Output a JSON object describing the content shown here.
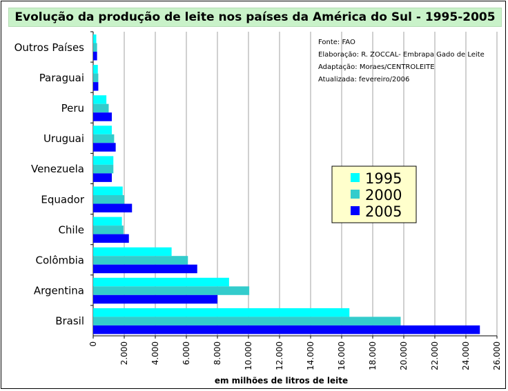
{
  "chart_data": {
    "type": "bar",
    "orientation": "horizontal",
    "title": "Evolução da produção de leite nos países da América do Sul - 1995-2005",
    "xlabel": "em milhões de litros de leite",
    "ylabel": "",
    "xlim": [
      0,
      26000
    ],
    "xticks": [
      "0",
      "2.000",
      "4.000",
      "6.000",
      "8.000",
      "10.000",
      "12.000",
      "14.000",
      "16.000",
      "18.000",
      "20.000",
      "22.000",
      "24.000",
      "26.000"
    ],
    "grid": true,
    "legend_position": "right",
    "categories": [
      "Outros Países",
      "Paraguai",
      "Peru",
      "Uruguai",
      "Venezuela",
      "Equador",
      "Chile",
      "Colômbia",
      "Argentina",
      "Brasil"
    ],
    "series": [
      {
        "name": "1995",
        "color": "#00ffff",
        "values": [
          200,
          300,
          850,
          1200,
          1300,
          1900,
          1850,
          5050,
          8750,
          16500
        ]
      },
      {
        "name": "2000",
        "color": "#33cccc",
        "values": [
          250,
          330,
          1000,
          1350,
          1300,
          2000,
          1950,
          6100,
          10050,
          19800
        ]
      },
      {
        "name": "2005",
        "color": "#0000ff",
        "values": [
          250,
          330,
          1200,
          1450,
          1200,
          2500,
          2300,
          6700,
          8000,
          24900
        ]
      }
    ],
    "notes": [
      "Fonte: FAO",
      "Elaboração: R. ZOCCAL- Embrapa Gado de Leite",
      "Adaptação: Moraes/CENTROLEITE",
      "Atualizada: fevereiro/2006"
    ]
  }
}
